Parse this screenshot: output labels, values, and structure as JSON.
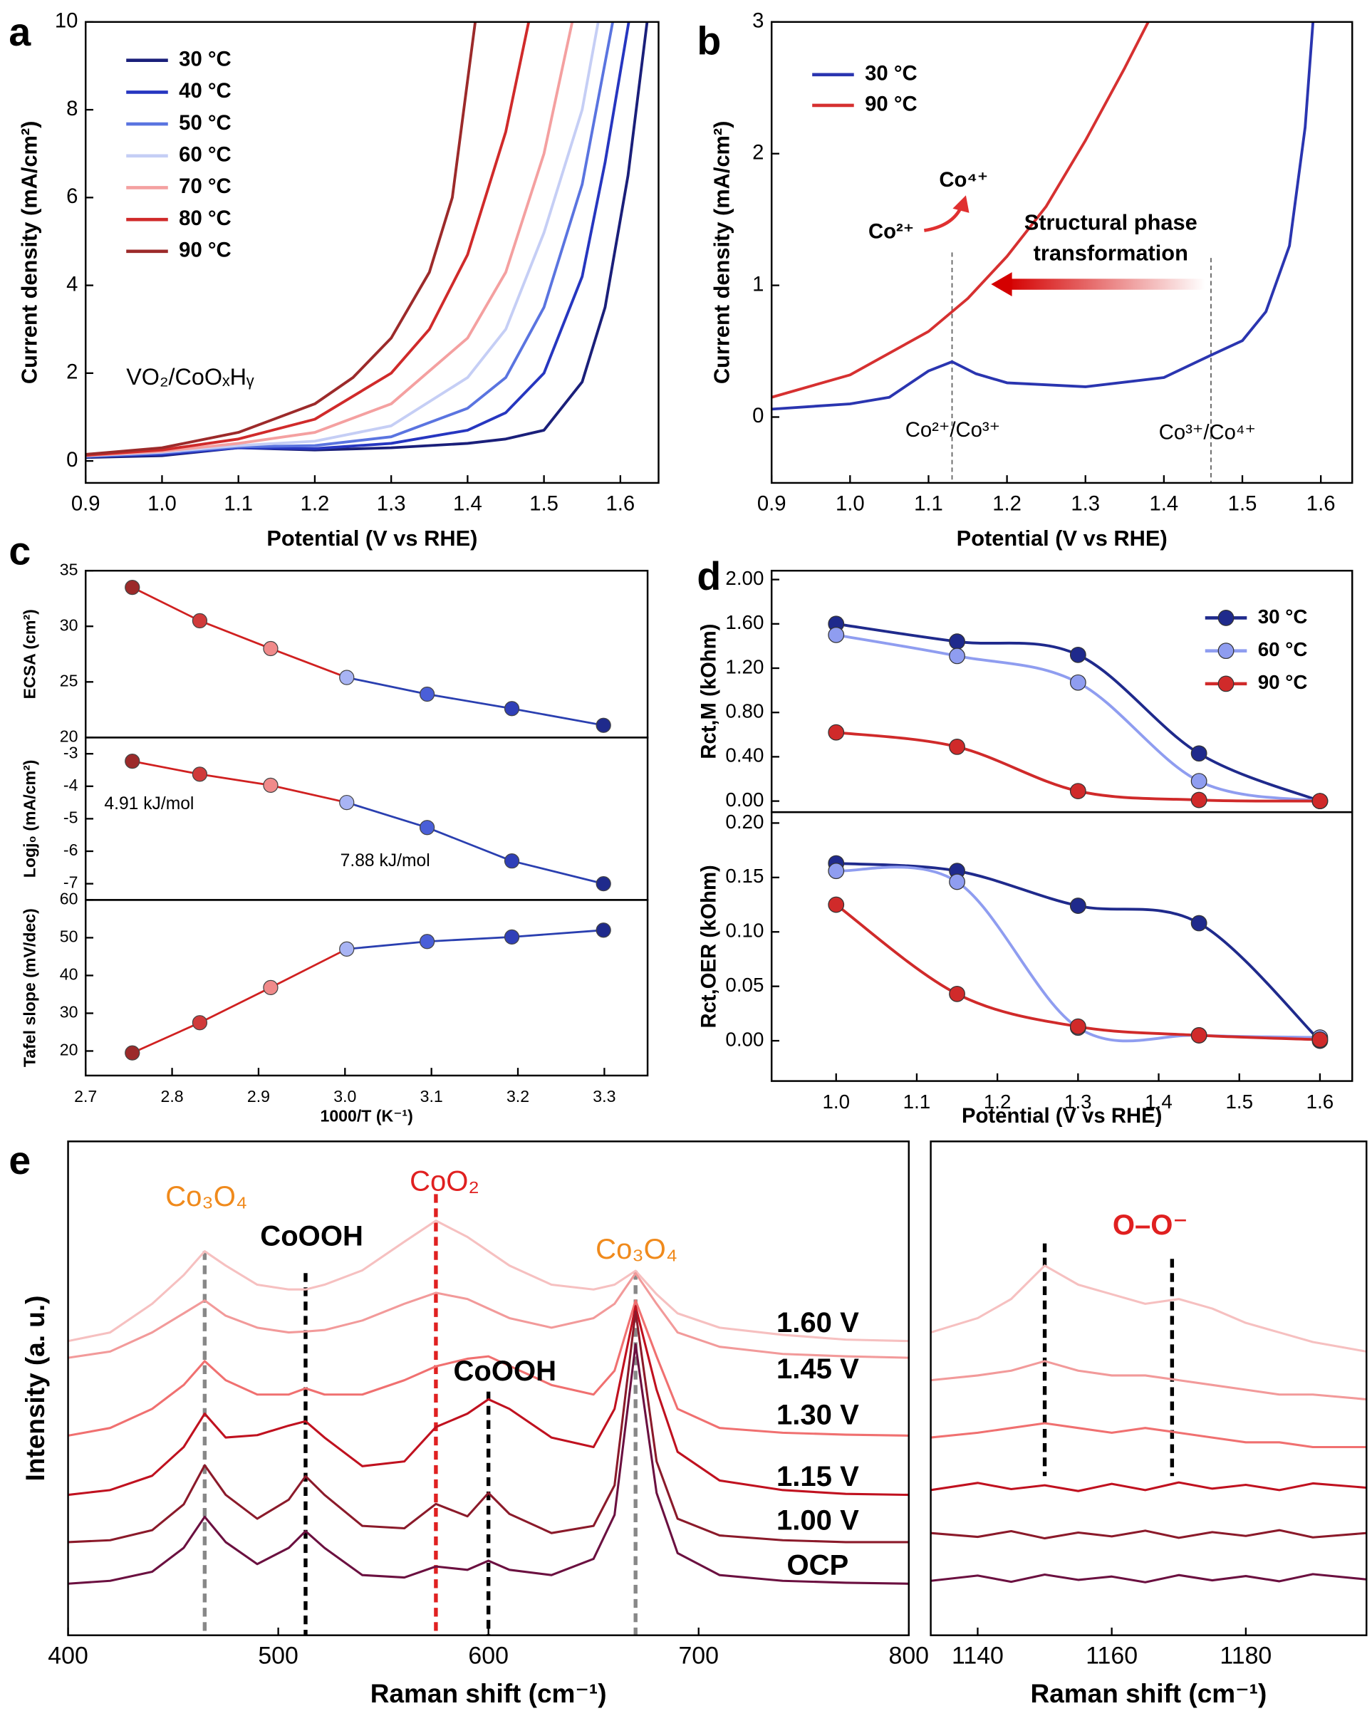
{
  "chart_data": [
    {
      "type": "line",
      "panel_label": "a",
      "xlabel": "Potential (V vs RHE)",
      "ylabel": "Current density (mA/cm²)",
      "xlim": [
        0.9,
        1.65
      ],
      "ylim": [
        -0.5,
        10
      ],
      "xticks": [
        0.9,
        {
          "value": 1,
          "label": "1.0"
        },
        1.1,
        1.2,
        1.3,
        1.4,
        1.5,
        1.6
      ],
      "yticks": [
        0,
        2,
        4,
        6,
        8,
        10
      ],
      "legend": "upper left",
      "annotations": [
        {
          "text": "VO₂/CoOₓHᵧ",
          "color": "#000000"
        }
      ],
      "series": [
        {
          "name": "30 °C",
          "color": "#1a1f7a",
          "x": [
            0.9,
            1.0,
            1.1,
            1.2,
            1.3,
            1.4,
            1.45,
            1.5,
            1.55,
            1.58,
            1.61,
            1.635
          ],
          "values": [
            0.08,
            0.12,
            0.3,
            0.25,
            0.3,
            0.4,
            0.5,
            0.7,
            1.8,
            3.5,
            6.5,
            10
          ]
        },
        {
          "name": "40 °C",
          "color": "#2636c0",
          "x": [
            0.9,
            1.0,
            1.1,
            1.2,
            1.3,
            1.4,
            1.45,
            1.5,
            1.55,
            1.58,
            1.611
          ],
          "values": [
            0.1,
            0.15,
            0.3,
            0.28,
            0.4,
            0.7,
            1.1,
            2.0,
            4.2,
            6.8,
            10
          ]
        },
        {
          "name": "50 °C",
          "color": "#5a74e0",
          "x": [
            0.9,
            1.0,
            1.1,
            1.2,
            1.3,
            1.4,
            1.45,
            1.5,
            1.55,
            1.59
          ],
          "values": [
            0.1,
            0.18,
            0.32,
            0.35,
            0.55,
            1.2,
            1.9,
            3.5,
            6.3,
            10
          ]
        },
        {
          "name": "60 °C",
          "color": "#c5cef5",
          "x": [
            0.9,
            1.0,
            1.1,
            1.2,
            1.3,
            1.4,
            1.45,
            1.5,
            1.55,
            1.571
          ],
          "values": [
            0.12,
            0.2,
            0.35,
            0.45,
            0.8,
            1.9,
            3.0,
            5.2,
            8.0,
            10
          ]
        },
        {
          "name": "70 °C",
          "color": "#f4a0a0",
          "x": [
            0.9,
            1.0,
            1.1,
            1.2,
            1.3,
            1.4,
            1.45,
            1.5,
            1.537
          ],
          "values": [
            0.12,
            0.22,
            0.4,
            0.65,
            1.3,
            2.8,
            4.3,
            7.0,
            10
          ]
        },
        {
          "name": "80 °C",
          "color": "#d02a2a",
          "x": [
            0.9,
            1.0,
            1.1,
            1.2,
            1.3,
            1.35,
            1.4,
            1.45,
            1.48
          ],
          "values": [
            0.13,
            0.25,
            0.5,
            0.95,
            2.0,
            3.0,
            4.7,
            7.5,
            10
          ]
        },
        {
          "name": "90 °C",
          "color": "#9c2a2a",
          "x": [
            0.9,
            1.0,
            1.1,
            1.2,
            1.25,
            1.3,
            1.35,
            1.38,
            1.41
          ],
          "values": [
            0.15,
            0.3,
            0.65,
            1.3,
            1.9,
            2.8,
            4.3,
            6.0,
            10
          ]
        }
      ]
    },
    {
      "type": "line",
      "panel_label": "b",
      "xlabel": "Potential (V vs RHE)",
      "ylabel": "Current density (mA/cm²)",
      "xlim": [
        0.9,
        1.64
      ],
      "ylim": [
        -0.5,
        3
      ],
      "xticks": [
        0.9,
        {
          "value": 1,
          "label": "1.0"
        },
        1.1,
        1.2,
        1.3,
        1.4,
        1.5,
        1.6
      ],
      "yticks": [
        0,
        1,
        2,
        3
      ],
      "legend": "upper left",
      "annotations": [
        {
          "text": "Co²⁺",
          "color": "#000000"
        },
        {
          "text": "Co⁴⁺",
          "color": "#000000"
        },
        {
          "text": "Structural phase",
          "color": "#000000"
        },
        {
          "text": "transformation",
          "color": "#000000"
        },
        {
          "text": "Co²⁺/Co³⁺",
          "color": "#000000"
        },
        {
          "text": "Co³⁺/Co⁴⁺",
          "color": "#000000"
        }
      ],
      "vlines": [
        {
          "x": 1.13,
          "color": "#666666"
        },
        {
          "x": 1.46,
          "color": "#666666"
        }
      ],
      "series": [
        {
          "name": "30 °C",
          "color": "#2a35b0",
          "x": [
            0.9,
            1.0,
            1.05,
            1.1,
            1.13,
            1.16,
            1.2,
            1.3,
            1.4,
            1.46,
            1.5,
            1.53,
            1.56,
            1.58,
            1.59
          ],
          "values": [
            0.06,
            0.1,
            0.15,
            0.35,
            0.42,
            0.33,
            0.26,
            0.23,
            0.3,
            0.47,
            0.58,
            0.8,
            1.3,
            2.2,
            3
          ]
        },
        {
          "name": "90 °C",
          "color": "#d63030",
          "x": [
            0.9,
            1.0,
            1.1,
            1.15,
            1.2,
            1.25,
            1.3,
            1.35,
            1.38
          ],
          "values": [
            0.15,
            0.32,
            0.65,
            0.9,
            1.22,
            1.6,
            2.1,
            2.65,
            3
          ]
        }
      ]
    },
    {
      "type": "scatter",
      "panel_label": "c",
      "ylabel": "ECSA (cm²)",
      "xlim": [
        2.7,
        3.35
      ],
      "ylim": [
        20,
        35
      ],
      "yticks": [
        20,
        25,
        30,
        35
      ],
      "x": [
        2.754,
        2.832,
        2.914,
        3.002,
        3.095,
        3.193,
        3.299
      ],
      "values": [
        33.5,
        30.5,
        28,
        25.4,
        23.9,
        22.6,
        21.1
      ],
      "point_colors": [
        "#9c2a2a",
        "#d03a3a",
        "#f08a8a",
        "#a8b4f4",
        "#4a5fd8",
        "#2f3fb8",
        "#1f2a8c"
      ],
      "segment_colors": [
        "#d02020",
        "#d02020",
        "#d02020",
        "#2a3fb0",
        "#2a3fb0",
        "#2a3fb0"
      ]
    },
    {
      "type": "scatter",
      "ylabel": "Logj₀ (mA/cm²)",
      "xlim": [
        2.7,
        3.35
      ],
      "ylim": [
        -7.5,
        -2.5
      ],
      "yticks": [
        -3,
        -4,
        -5,
        -6,
        -7
      ],
      "annotations": [
        {
          "text": "4.91 kJ/mol",
          "color": "#000000"
        },
        {
          "text": "7.88 kJ/mol",
          "color": "#000000"
        }
      ],
      "x": [
        2.754,
        2.832,
        2.914,
        3.002,
        3.095,
        3.193,
        3.299
      ],
      "values": [
        -3.23,
        -3.63,
        -3.97,
        -4.5,
        -5.27,
        -6.3,
        -7.0
      ],
      "point_colors": [
        "#9c2a2a",
        "#d03a3a",
        "#f08a8a",
        "#a8b4f4",
        "#4a5fd8",
        "#2f3fb8",
        "#1f2a8c"
      ],
      "segment_colors": [
        "#d02020",
        "#d02020",
        "#d02020",
        "#2a3fb0",
        "#2a3fb0",
        "#2a3fb0"
      ]
    },
    {
      "type": "scatter",
      "xlabel": "1000/T (K⁻¹)",
      "ylabel": "Tafel slope (mV/dec)",
      "xlim": [
        2.7,
        3.35
      ],
      "ylim": [
        13.5,
        60
      ],
      "xticks": [
        2.7,
        2.8,
        2.9,
        {
          "value": 3,
          "label": "3.0"
        },
        3.1,
        3.2,
        3.3
      ],
      "yticks": [
        20,
        30,
        40,
        50,
        60
      ],
      "x": [
        2.754,
        2.832,
        2.914,
        3.002,
        3.095,
        3.193,
        3.299
      ],
      "values": [
        19.5,
        27.5,
        36.8,
        47,
        49,
        50.2,
        52
      ],
      "point_colors": [
        "#9c2a2a",
        "#d03a3a",
        "#f08a8a",
        "#a8b4f4",
        "#4a5fd8",
        "#2f3fb8",
        "#1f2a8c"
      ],
      "segment_colors": [
        "#d02020",
        "#d02020",
        "#d02020",
        "#2a3fb0",
        "#2a3fb0",
        "#2a3fb0"
      ]
    },
    {
      "type": "line",
      "panel_label": "d",
      "ylabel": "Rct,M (kOhm)",
      "xlim": [
        0.92,
        1.64
      ],
      "ylim": [
        -0.1,
        2.08
      ],
      "yticks": [
        {
          "value": 0,
          "label": "0.00"
        },
        {
          "value": 0.4,
          "label": "0.40"
        },
        {
          "value": 0.8,
          "label": "0.80"
        },
        {
          "value": 1.2,
          "label": "1.20"
        },
        {
          "value": 1.6,
          "label": "1.60"
        },
        {
          "value": 2,
          "label": "2.00"
        }
      ],
      "legend": "upper right",
      "markers": true,
      "smooth": true,
      "x": [
        1.0,
        1.15,
        1.3,
        1.45,
        1.6
      ],
      "series": [
        {
          "name": "30 °C",
          "color": "#1f2a8c",
          "values": [
            1.6,
            1.44,
            1.32,
            0.43,
            0.0
          ]
        },
        {
          "name": "60 °C",
          "color": "#8f9df0",
          "values": [
            1.5,
            1.31,
            1.07,
            0.18,
            0.0
          ]
        },
        {
          "name": "90 °C",
          "color": "#d02a2a",
          "values": [
            0.62,
            0.49,
            0.09,
            0.01,
            0.0
          ]
        }
      ]
    },
    {
      "type": "line",
      "xlabel": "Potential (V vs RHE)",
      "ylabel": "Rct,OER (kOhm)",
      "xlim": [
        0.92,
        1.64
      ],
      "ylim": [
        -0.037,
        0.21
      ],
      "xticks": [
        {
          "value": 1,
          "label": "1.0"
        },
        1.1,
        1.2,
        1.3,
        1.4,
        1.5,
        1.6
      ],
      "yticks": [
        {
          "value": 0,
          "label": "0.00"
        },
        {
          "value": 0.05,
          "label": "0.05"
        },
        {
          "value": 0.1,
          "label": "0.10"
        },
        {
          "value": 0.15,
          "label": "0.15"
        },
        {
          "value": 0.2,
          "label": "0.20"
        }
      ],
      "markers": true,
      "smooth": true,
      "x": [
        1.0,
        1.15,
        1.3,
        1.45,
        1.6
      ],
      "series": [
        {
          "color": "#1f2a8c",
          "values": [
            0.163,
            0.156,
            0.124,
            0.108,
            0.0
          ]
        },
        {
          "color": "#8f9df0",
          "values": [
            0.156,
            0.146,
            0.012,
            0.005,
            0.003
          ]
        },
        {
          "color": "#d02a2a",
          "values": [
            0.125,
            0.043,
            0.013,
            0.005,
            0.001
          ]
        }
      ]
    },
    {
      "type": "line",
      "panel_label": "e",
      "xlabel": "Raman shift (cm⁻¹)",
      "ylabel": "Intensity (a. u.)",
      "xlim": [
        400,
        800
      ],
      "ylim": [
        -3.4,
        100
      ],
      "xticks": [
        400,
        500,
        600,
        700,
        800
      ],
      "legend": "inline",
      "annotations": [
        {
          "text": "Co₃O₄",
          "color": "#f08a1c"
        },
        {
          "text": "CoOOH",
          "color": "#000000"
        },
        {
          "text": "CoO₂",
          "color": "#e02020"
        },
        {
          "text": "Co₃O₄",
          "color": "#f08a1c"
        },
        {
          "text": "CoOOH",
          "color": "#000000"
        }
      ],
      "vlines": [
        {
          "x": 465,
          "color": "#888888"
        },
        {
          "x": 513,
          "color": "#000000"
        },
        {
          "x": 575,
          "color": "#e02020"
        },
        {
          "x": 600,
          "color": "#000000"
        },
        {
          "x": 670,
          "color": "#888888"
        }
      ],
      "x": [
        400,
        420,
        440,
        455,
        465,
        475,
        490,
        505,
        513,
        522,
        540,
        560,
        575,
        590,
        600,
        610,
        630,
        650,
        660,
        670,
        680,
        690,
        710,
        740,
        770,
        800
      ],
      "series": [
        {
          "name": "1.60 V",
          "color": "#f6c0c0",
          "values": [
            58.2,
            60,
            66,
            72,
            77,
            74,
            70,
            69,
            69,
            70,
            73,
            79,
            83.4,
            80,
            77,
            74,
            70,
            69,
            70,
            72.9,
            68,
            64,
            61,
            59.5,
            58.5,
            58.2
          ]
        },
        {
          "name": "1.45 V",
          "color": "#f29a9a",
          "values": [
            54.7,
            56,
            60,
            64,
            66.7,
            63.5,
            61,
            60,
            60.2,
            60.5,
            62.5,
            66,
            68.3,
            67,
            65,
            63,
            61,
            63,
            66,
            72.4,
            66,
            60,
            57,
            55.5,
            55,
            54.7
          ]
        },
        {
          "name": "1.30 V",
          "color": "#f07070",
          "values": [
            38.4,
            40,
            44,
            49,
            54,
            50,
            47,
            47,
            48.3,
            47,
            47,
            50,
            52.9,
            54.5,
            55,
            53,
            49,
            47,
            52,
            66.7,
            55,
            44,
            40,
            39,
            38.6,
            38.4
          ]
        },
        {
          "name": "1.15 V",
          "color": "#c0111f",
          "values": [
            26,
            27,
            30,
            36,
            43,
            38,
            38.5,
            40.5,
            41.4,
            38,
            32,
            33,
            40.2,
            43,
            46,
            44,
            38,
            36,
            44,
            65.5,
            48,
            35,
            29,
            27,
            26.2,
            26
          ]
        },
        {
          "name": "1.00 V",
          "color": "#8b1a2a",
          "values": [
            16.1,
            16.5,
            18.6,
            24,
            32.2,
            26,
            21,
            25,
            29.9,
            26,
            19.5,
            19,
            24.1,
            21.5,
            26.4,
            22,
            18,
            19.5,
            28,
            64.4,
            33,
            21,
            17.5,
            16.5,
            16.1,
            16.1
          ]
        },
        {
          "name": "OCP",
          "color": "#6b1040",
          "values": [
            7.4,
            8,
            9.9,
            14.9,
            21.4,
            16.1,
            11.5,
            14.9,
            18.4,
            14.9,
            9.2,
            8.7,
            11,
            10.3,
            12.2,
            10.3,
            9.2,
            12.6,
            21.8,
            57.5,
            26.4,
            13.8,
            9.2,
            8,
            7.6,
            7.4
          ]
        }
      ]
    },
    {
      "type": "line",
      "xlabel": "Raman shift (cm⁻¹)",
      "xlim": [
        1133,
        1198
      ],
      "ylim": [
        -3.4,
        100
      ],
      "xticks": [
        1140,
        1160,
        1180
      ],
      "annotations": [
        {
          "text": "O–O⁻",
          "color": "#e02020"
        }
      ],
      "vlines": [
        {
          "x": 1150,
          "color": "#000000"
        },
        {
          "x": 1169,
          "color": "#000000"
        }
      ],
      "x": [
        1133,
        1140,
        1145,
        1150,
        1155,
        1160,
        1165,
        1170,
        1175,
        1180,
        1185,
        1190,
        1198
      ],
      "series": [
        {
          "color": "#f6c0c0",
          "values": [
            60,
            63,
            67,
            74,
            70,
            68,
            66,
            67,
            65,
            62,
            60,
            58,
            56
          ]
        },
        {
          "color": "#f29a9a",
          "values": [
            50,
            51,
            52,
            54,
            52,
            51,
            51,
            50,
            49,
            48,
            47,
            47,
            46
          ]
        },
        {
          "color": "#f07070",
          "values": [
            38,
            39,
            40,
            41,
            40,
            39,
            40,
            39,
            38,
            37,
            37,
            36,
            36
          ]
        },
        {
          "color": "#c0111f",
          "values": [
            27,
            28.5,
            27.2,
            28,
            26.8,
            28.3,
            27,
            28.6,
            27.3,
            28.1,
            27,
            28.4,
            27.5
          ]
        },
        {
          "color": "#8b1a2a",
          "values": [
            18,
            17.2,
            18.4,
            16.9,
            18.1,
            17.3,
            18.5,
            17,
            18.2,
            17.4,
            18.6,
            17.1,
            18
          ]
        },
        {
          "color": "#6b1040",
          "values": [
            8,
            9.1,
            7.8,
            9.3,
            8.2,
            8.9,
            7.7,
            9.2,
            8.1,
            9,
            7.9,
            9.4,
            8.3
          ]
        }
      ]
    }
  ]
}
